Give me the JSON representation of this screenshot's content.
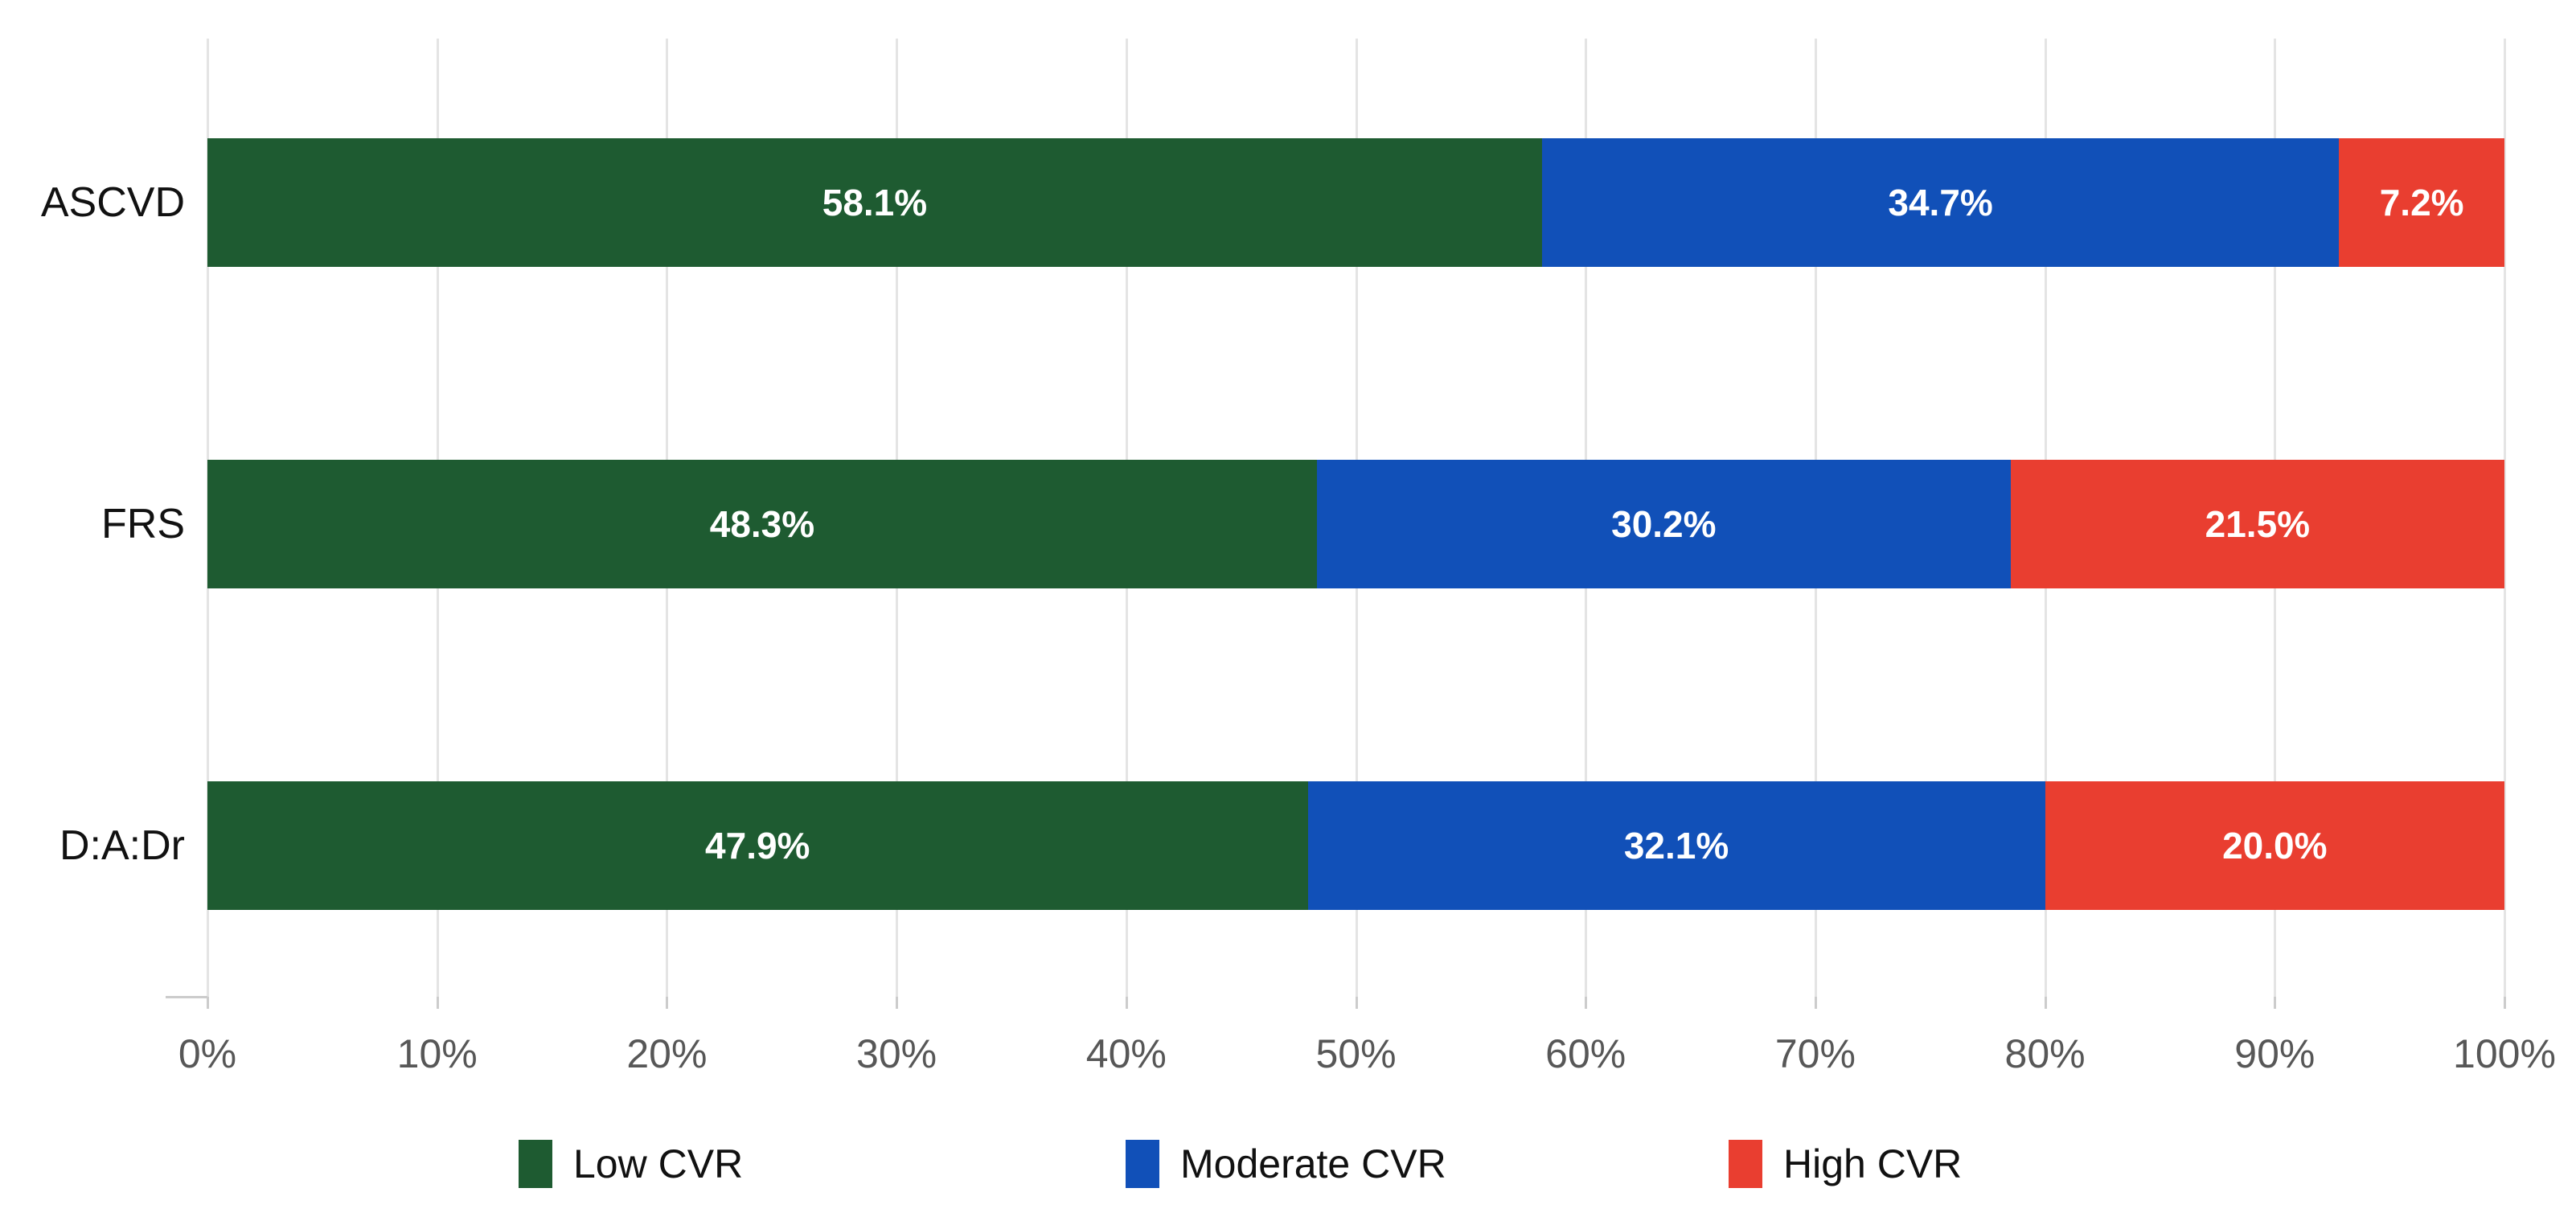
{
  "chart_data": {
    "type": "bar",
    "orientation": "horizontal",
    "stacked": true,
    "title": "",
    "categories": [
      "ASCVD",
      "FRS",
      "D:A:Dr"
    ],
    "series": [
      {
        "name": "Low CVR",
        "color": "#1E5B31",
        "values": [
          58.1,
          48.3,
          47.9
        ]
      },
      {
        "name": "Moderate CVR",
        "color": "#1150B8",
        "values": [
          34.7,
          30.2,
          32.1
        ]
      },
      {
        "name": "High CVR",
        "color": "#E93E30",
        "values": [
          7.2,
          21.5,
          20.0
        ]
      }
    ],
    "bar_value_labels": [
      [
        "58.1%",
        "34.7%",
        "7.2%"
      ],
      [
        "48.3%",
        "30.2%",
        "21.5%"
      ],
      [
        "47.9%",
        "32.1%",
        "20.0%"
      ]
    ],
    "x_tick_labels": [
      "0%",
      "10%",
      "20%",
      "30%",
      "40%",
      "50%",
      "60%",
      "70%",
      "80%",
      "90%",
      "100%"
    ],
    "xlim": [
      0,
      100
    ],
    "grid": "vertical-only",
    "legend_position": "bottom",
    "legend": [
      "Low CVR",
      "Moderate CVR",
      "High CVR"
    ]
  },
  "style": {
    "background": "#FFFFFF",
    "gridline_color": "#E4E4E4",
    "tick_color": "#CCCCCC",
    "axis_label_color": "#575757",
    "category_label_color": "#111111",
    "bar_label_color": "#FFFFFF"
  }
}
